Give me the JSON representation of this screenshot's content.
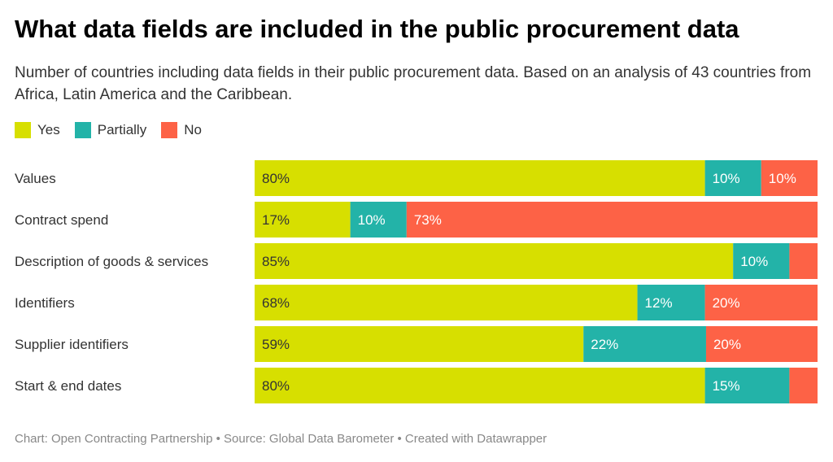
{
  "title": "What data fields are included in the public procurement data",
  "subtitle": "Number of countries including data fields in their public procurement data. Based on an analysis of 43 countries from Africa, Latin America and the Caribbean.",
  "footer": "Chart: Open Contracting Partnership • Source: Global Data Barometer • Created with Datawrapper",
  "chart_data": {
    "type": "bar",
    "orientation": "horizontal",
    "stacked": true,
    "unit": "%",
    "legend_position": "top-left",
    "categories": [
      "Values",
      "Contract spend",
      "Description of goods & services",
      "Identifiers",
      "Supplier identifiers",
      "Start & end dates"
    ],
    "series": [
      {
        "name": "Yes",
        "color": "#d7df00",
        "values": [
          80,
          17,
          85,
          68,
          59,
          80
        ],
        "labels": [
          "80%",
          "17%",
          "85%",
          "68%",
          "59%",
          "80%"
        ]
      },
      {
        "name": "Partially",
        "color": "#23b3a8",
        "values": [
          10,
          10,
          10,
          12,
          22,
          15
        ],
        "labels": [
          "10%",
          "10%",
          "10%",
          "12%",
          "22%",
          "15%"
        ]
      },
      {
        "name": "No",
        "color": "#fd6246",
        "values": [
          10,
          73,
          5,
          20,
          20,
          5
        ],
        "labels": [
          "10%",
          "73%",
          "",
          "20%",
          "20%",
          ""
        ]
      }
    ]
  }
}
